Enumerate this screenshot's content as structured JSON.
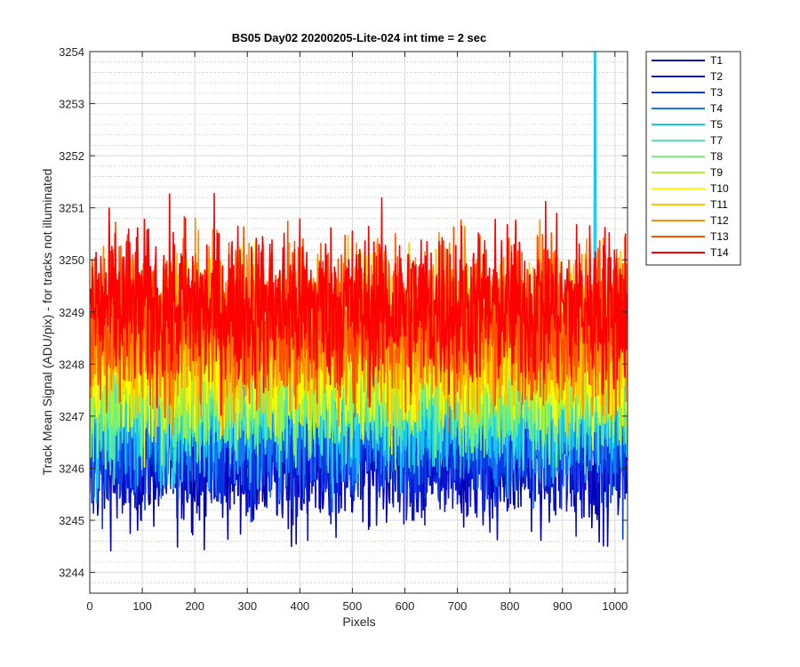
{
  "chart_data": {
    "type": "line",
    "title": "BS05 Day02 20200205-Lite-024 int time = 2 sec",
    "xlabel": "Pixels",
    "ylabel": "Track Mean Signal (ADU/pix) - for tracks not illuminated",
    "xlim": [
      0,
      1024
    ],
    "ylim": [
      3243.6,
      3254
    ],
    "xticks": [
      0,
      100,
      200,
      300,
      400,
      500,
      600,
      700,
      800,
      900,
      1000
    ],
    "yticks": [
      3244,
      3245,
      3246,
      3247,
      3248,
      3249,
      3250,
      3251,
      3252,
      3253,
      3254
    ],
    "grid": true,
    "minor_grid": true,
    "legend_position": "outside-right",
    "n_points": 1024,
    "series": [
      {
        "name": "T1",
        "color": "#0000b4",
        "baseline": 3246.2,
        "noise": 0.75
      },
      {
        "name": "T2",
        "color": "#0a14d2",
        "baseline": 3246.4,
        "noise": 0.75
      },
      {
        "name": "T3",
        "color": "#0a3ce6",
        "baseline": 3246.6,
        "noise": 0.72
      },
      {
        "name": "T4",
        "color": "#1478f0",
        "baseline": 3246.9,
        "noise": 0.72
      },
      {
        "name": "T5",
        "color": "#14c8f0",
        "baseline": 3247.2,
        "noise": 0.75
      },
      {
        "name": "T7",
        "color": "#50e6b4",
        "baseline": 3247.5,
        "noise": 0.75
      },
      {
        "name": "T8",
        "color": "#78f078",
        "baseline": 3247.7,
        "noise": 0.75
      },
      {
        "name": "T9",
        "color": "#b4f032",
        "baseline": 3247.9,
        "noise": 0.75
      },
      {
        "name": "T10",
        "color": "#ffff00",
        "baseline": 3248.2,
        "noise": 0.8
      },
      {
        "name": "T11",
        "color": "#ffc300",
        "baseline": 3248.5,
        "noise": 0.8
      },
      {
        "name": "T12",
        "color": "#ff8c00",
        "baseline": 3248.7,
        "noise": 0.85
      },
      {
        "name": "T13",
        "color": "#ff5000",
        "baseline": 3248.9,
        "noise": 0.85
      },
      {
        "name": "T14",
        "color": "#ff0000",
        "baseline": 3249.1,
        "noise": 0.85
      }
    ],
    "spikes": [
      {
        "series": "T5",
        "x": 962,
        "y": 3254.0
      }
    ]
  }
}
